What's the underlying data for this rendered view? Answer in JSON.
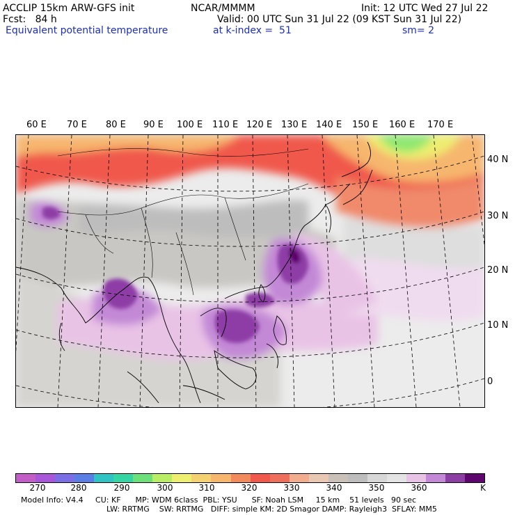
{
  "header": {
    "line1_left": "ACCLIP 15km ARW-GFS init",
    "line1_center": "NCAR/MMMM",
    "line1_right": "Init: 12 UTC Wed 27 Jul 22",
    "line2_left": "Fcst:   84 h",
    "line2_right": "Valid: 00 UTC Sun 31 Jul 22 (09 KST Sun 31 Jul 22)",
    "line3_left": "Equivalent potential temperature",
    "line3_center": "at k-index =  51",
    "line3_right": "sm= 2"
  },
  "longitude_labels": [
    "60 E",
    "70 E",
    "80 E",
    "90 E",
    "100 E",
    "110 E",
    "120 E",
    "130 E",
    "140 E",
    "150 E",
    "160 E",
    "170 E"
  ],
  "latitude_labels": [
    "40 N",
    "30 N",
    "20 N",
    "10 N",
    "0"
  ],
  "colorbar": {
    "colors": [
      "#c25ec6",
      "#a857d8",
      "#7c6ee6",
      "#5a7ee6",
      "#2fc3c4",
      "#34d6a4",
      "#6ee07a",
      "#b9ee64",
      "#eeee70",
      "#f4d272",
      "#f6b66e",
      "#f38a5c",
      "#f0584c",
      "#ef6e5c",
      "#f2ad8f",
      "#e8c8b2",
      "#c9c1b8",
      "#bdbdbd",
      "#d7d7d7",
      "#e4e4e4",
      "#e9c3e6",
      "#c388d6",
      "#8d3ea5",
      "#5e066e"
    ],
    "labels": [
      "270",
      "280",
      "290",
      "300",
      "310",
      "320",
      "330",
      "340",
      "350",
      "360",
      "K"
    ]
  },
  "model_info": {
    "line1": "Model Info: V4.4     CU: KF      MP: WDM 6class  PBL: YSU      SF: Noah LSM     15 km    51 levels   90 sec",
    "line2": "LW: RRTMG    SW: RRTMG   DIFF: simple KM: 2D Smagor DAMP: Rayleigh3  SFLAY: MM5"
  }
}
